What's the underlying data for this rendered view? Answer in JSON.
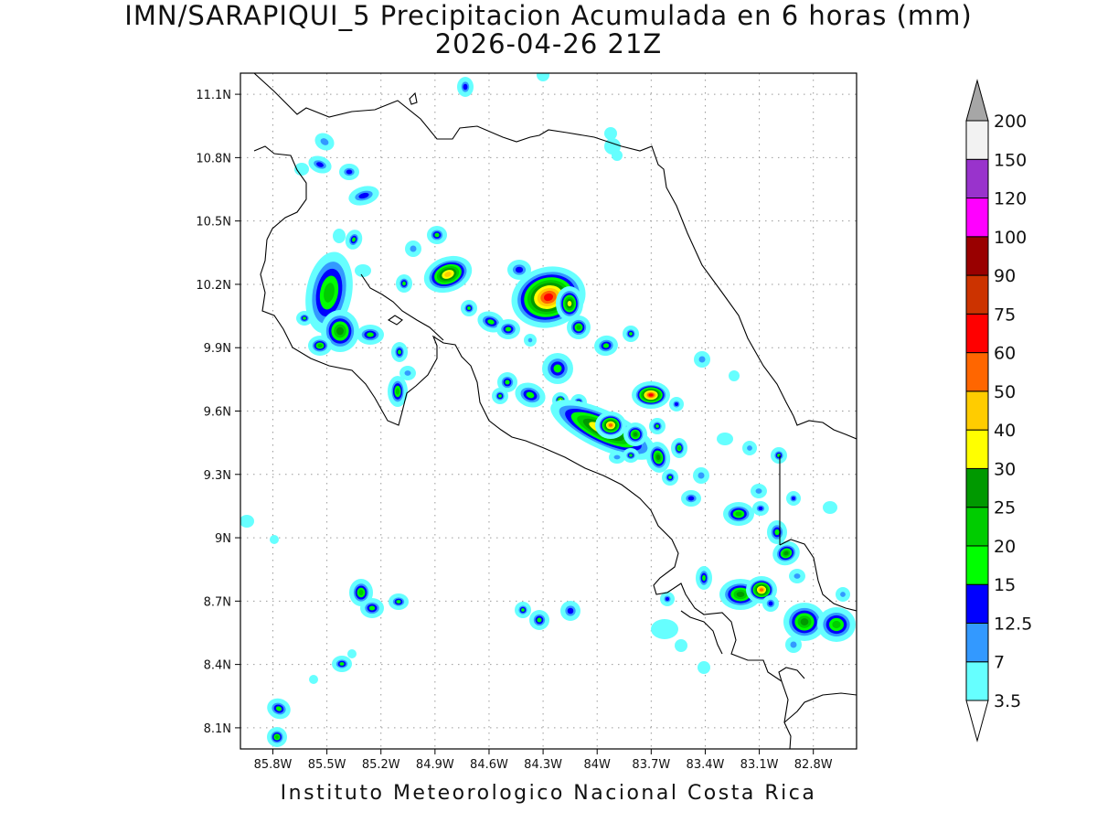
{
  "title": "IMN/SARAPIQUI_5 Precipitacion Acumulada en 6 horas (mm)",
  "subtitle": "2026-04-26 21Z",
  "footer": "Instituto Meteorologico Nacional Costa Rica",
  "map": {
    "lon_range": [
      -85.98,
      -82.56
    ],
    "lat_range": [
      8.0,
      11.2
    ],
    "lat_ticks": [
      {
        "value": 11.1,
        "label": "11.1N"
      },
      {
        "value": 10.8,
        "label": "10.8N"
      },
      {
        "value": 10.5,
        "label": "10.5N"
      },
      {
        "value": 10.2,
        "label": "10.2N"
      },
      {
        "value": 9.9,
        "label": "9.9N"
      },
      {
        "value": 9.6,
        "label": "9.6N"
      },
      {
        "value": 9.3,
        "label": "9.3N"
      },
      {
        "value": 9.0,
        "label": "9N"
      },
      {
        "value": 8.7,
        "label": "8.7N"
      },
      {
        "value": 8.4,
        "label": "8.4N"
      },
      {
        "value": 8.1,
        "label": "8.1N"
      }
    ],
    "lon_ticks": [
      {
        "value": -85.8,
        "label": "85.8W"
      },
      {
        "value": -85.5,
        "label": "85.5W"
      },
      {
        "value": -85.2,
        "label": "85.2W"
      },
      {
        "value": -84.9,
        "label": "84.9W"
      },
      {
        "value": -84.6,
        "label": "84.6W"
      },
      {
        "value": -84.3,
        "label": "84.3W"
      },
      {
        "value": -84.0,
        "label": "84W"
      },
      {
        "value": -83.7,
        "label": "83.7W"
      },
      {
        "value": -83.4,
        "label": "83.4W"
      },
      {
        "value": -83.1,
        "label": "83.1W"
      },
      {
        "value": -82.8,
        "label": "82.8W"
      }
    ],
    "grid": "dotted",
    "background": "#ffffff",
    "coast_color": "#000000"
  },
  "colorbar": {
    "labels": [
      "3.5",
      "7",
      "12.5",
      "15",
      "20",
      "25",
      "30",
      "40",
      "50",
      "60",
      "75",
      "90",
      "100",
      "120",
      "150",
      "200"
    ],
    "colors": [
      "#66ffff",
      "#3399ff",
      "#0000ff",
      "#00ff00",
      "#00cc00",
      "#009900",
      "#ffff00",
      "#ffcc00",
      "#ff6600",
      "#ff0000",
      "#cc3300",
      "#990000",
      "#ff00ff",
      "#9933cc",
      "#f2f2f2",
      "#a6a6a6"
    ]
  }
}
